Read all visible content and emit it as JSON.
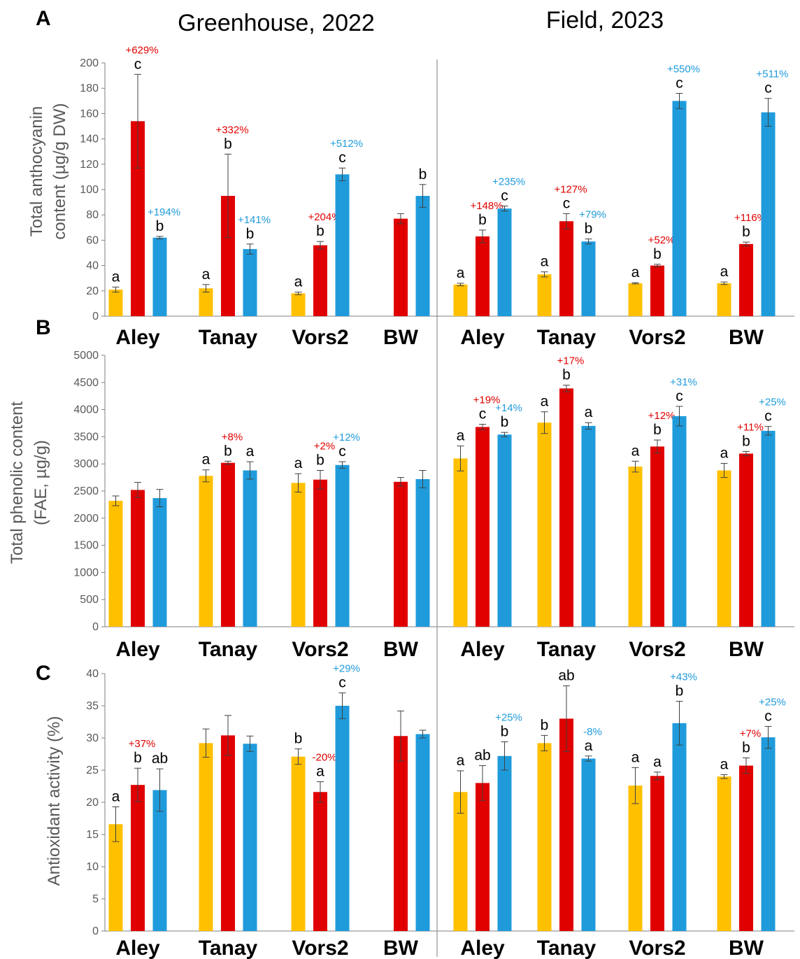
{
  "figure": {
    "column_titles": [
      "Greenhouse, 2022",
      "Field, 2023"
    ],
    "colors": {
      "yellow": "#FFC000",
      "red": "#E00000",
      "blue": "#1F9BDB",
      "axis": "#7f7f7f",
      "pct_red": "#E00000",
      "pct_blue": "#1F9BDB"
    }
  },
  "chart_data": [
    {
      "panel": "A",
      "type": "bar",
      "ylabel": [
        "Total anthocyanin",
        "content (µg/g DW)"
      ],
      "ylim": [
        0,
        200
      ],
      "yticks": [
        0,
        20,
        40,
        60,
        80,
        100,
        120,
        140,
        160,
        180,
        200
      ],
      "categories": [
        "Aley",
        "Tanay",
        "Vors2",
        "BW",
        "Aley",
        "Tanay",
        "Vors2",
        "BW"
      ],
      "groups": [
        [
          {
            "c": "yellow",
            "v": 21,
            "e": 2,
            "l": "a"
          },
          {
            "c": "red",
            "v": 154,
            "e": 37,
            "l": "c",
            "p": "+629%"
          },
          {
            "c": "blue",
            "v": 62,
            "e": 1,
            "l": "b",
            "p": "+194%"
          }
        ],
        [
          {
            "c": "yellow",
            "v": 22,
            "e": 3,
            "l": "a"
          },
          {
            "c": "red",
            "v": 95,
            "e": 33,
            "l": "b",
            "p": "+332%"
          },
          {
            "c": "blue",
            "v": 53,
            "e": 4,
            "l": "b",
            "p": "+141%"
          }
        ],
        [
          {
            "c": "yellow",
            "v": 18,
            "e": 1,
            "l": "a"
          },
          {
            "c": "red",
            "v": 56,
            "e": 3,
            "l": "b",
            "p": "+204%"
          },
          {
            "c": "blue",
            "v": 112,
            "e": 5,
            "l": "c",
            "p": "+512%"
          }
        ],
        [
          {
            "c": "red",
            "v": 77,
            "e": 4
          },
          {
            "c": "blue",
            "v": 95,
            "e": 9,
            "l": "b"
          }
        ],
        [
          {
            "c": "yellow",
            "v": 25,
            "e": 1,
            "l": "a"
          },
          {
            "c": "red",
            "v": 63,
            "e": 5,
            "l": "b",
            "p": "+148%"
          },
          {
            "c": "blue",
            "v": 85,
            "e": 2,
            "l": "c",
            "p": "+235%"
          }
        ],
        [
          {
            "c": "yellow",
            "v": 33,
            "e": 2,
            "l": "a"
          },
          {
            "c": "red",
            "v": 75,
            "e": 6,
            "l": "c",
            "p": "+127%"
          },
          {
            "c": "blue",
            "v": 59,
            "e": 2,
            "l": "b",
            "p": "+79%"
          }
        ],
        [
          {
            "c": "yellow",
            "v": 26,
            "e": 0.5,
            "l": "a"
          },
          {
            "c": "red",
            "v": 40,
            "e": 1,
            "l": "b",
            "p": "+52%"
          },
          {
            "c": "blue",
            "v": 170,
            "e": 6,
            "l": "c",
            "p": "+550%"
          }
        ],
        [
          {
            "c": "yellow",
            "v": 26,
            "e": 1,
            "l": "a"
          },
          {
            "c": "red",
            "v": 57,
            "e": 1.5,
            "l": "b",
            "p": "+116%"
          },
          {
            "c": "blue",
            "v": 161,
            "e": 11,
            "l": "c",
            "p": "+511%"
          }
        ]
      ]
    },
    {
      "panel": "B",
      "type": "bar",
      "ylabel": [
        "Total phenolic content",
        "(FAE, µg/g)"
      ],
      "ylim": [
        0,
        5000
      ],
      "yticks": [
        0,
        500,
        1000,
        1500,
        2000,
        2500,
        3000,
        3500,
        4000,
        4500,
        5000
      ],
      "categories": [
        "Aley",
        "Tanay",
        "Vors2",
        "BW",
        "Aley",
        "Tanay",
        "Vors2",
        "BW"
      ],
      "groups": [
        [
          {
            "c": "yellow",
            "v": 2320,
            "e": 90
          },
          {
            "c": "red",
            "v": 2520,
            "e": 140
          },
          {
            "c": "blue",
            "v": 2370,
            "e": 160
          }
        ],
        [
          {
            "c": "yellow",
            "v": 2780,
            "e": 110,
            "l": "a"
          },
          {
            "c": "red",
            "v": 3020,
            "e": 30,
            "l": "b",
            "p": "+8%"
          },
          {
            "c": "blue",
            "v": 2880,
            "e": 160,
            "l": "a"
          }
        ],
        [
          {
            "c": "yellow",
            "v": 2650,
            "e": 170,
            "l": "a"
          },
          {
            "c": "red",
            "v": 2710,
            "e": 170,
            "l": "b",
            "p": "+2%"
          },
          {
            "c": "blue",
            "v": 2980,
            "e": 60,
            "l": "c",
            "p": "+12%"
          }
        ],
        [
          {
            "c": "red",
            "v": 2670,
            "e": 80
          },
          {
            "c": "blue",
            "v": 2720,
            "e": 160
          }
        ],
        [
          {
            "c": "yellow",
            "v": 3100,
            "e": 230,
            "l": "a"
          },
          {
            "c": "red",
            "v": 3680,
            "e": 50,
            "l": "c",
            "p": "+19%"
          },
          {
            "c": "blue",
            "v": 3540,
            "e": 40,
            "l": "b",
            "p": "+14%"
          }
        ],
        [
          {
            "c": "yellow",
            "v": 3760,
            "e": 200,
            "l": "a"
          },
          {
            "c": "red",
            "v": 4390,
            "e": 60,
            "l": "b",
            "p": "+17%"
          },
          {
            "c": "blue",
            "v": 3700,
            "e": 60,
            "l": "a"
          }
        ],
        [
          {
            "c": "yellow",
            "v": 2950,
            "e": 100,
            "l": "a"
          },
          {
            "c": "red",
            "v": 3320,
            "e": 120,
            "l": "b",
            "p": "+12%"
          },
          {
            "c": "blue",
            "v": 3880,
            "e": 180,
            "l": "c",
            "p": "+31%"
          }
        ],
        [
          {
            "c": "yellow",
            "v": 2880,
            "e": 130,
            "l": "a"
          },
          {
            "c": "red",
            "v": 3190,
            "e": 40,
            "l": "b",
            "p": "+11%"
          },
          {
            "c": "blue",
            "v": 3610,
            "e": 80,
            "l": "c",
            "p": "+25%"
          }
        ]
      ]
    },
    {
      "panel": "C",
      "type": "bar",
      "ylabel": [
        "Antioxidant activity (%)"
      ],
      "ylim": [
        0,
        40
      ],
      "yticks": [
        0,
        5,
        10,
        15,
        20,
        25,
        30,
        35,
        40
      ],
      "categories": [
        "Aley",
        "Tanay",
        "Vors2",
        "BW",
        "Aley",
        "Tanay",
        "Vors2",
        "BW"
      ],
      "groups": [
        [
          {
            "c": "yellow",
            "v": 16.6,
            "e": 2.7,
            "l": "a"
          },
          {
            "c": "red",
            "v": 22.7,
            "e": 2.6,
            "l": "b",
            "p": "+37%"
          },
          {
            "c": "blue",
            "v": 21.9,
            "e": 3.3,
            "l": "ab"
          }
        ],
        [
          {
            "c": "yellow",
            "v": 29.2,
            "e": 2.2
          },
          {
            "c": "red",
            "v": 30.4,
            "e": 3.1
          },
          {
            "c": "blue",
            "v": 29.1,
            "e": 1.2
          }
        ],
        [
          {
            "c": "yellow",
            "v": 27.1,
            "e": 1.2,
            "l": "b"
          },
          {
            "c": "red",
            "v": 21.6,
            "e": 1.6,
            "l": "a",
            "p": "-20%"
          },
          {
            "c": "blue",
            "v": 35.0,
            "e": 2.0,
            "l": "c",
            "p": "+29%"
          }
        ],
        [
          {
            "c": "red",
            "v": 30.3,
            "e": 3.9
          },
          {
            "c": "blue",
            "v": 30.6,
            "e": 0.6
          }
        ],
        [
          {
            "c": "yellow",
            "v": 21.6,
            "e": 3.3,
            "l": "a"
          },
          {
            "c": "red",
            "v": 23.0,
            "e": 2.7,
            "l": "ab"
          },
          {
            "c": "blue",
            "v": 27.2,
            "e": 2.2,
            "l": "b",
            "p": "+25%"
          }
        ],
        [
          {
            "c": "yellow",
            "v": 29.2,
            "e": 1.2,
            "l": "b"
          },
          {
            "c": "red",
            "v": 33.0,
            "e": 5.1,
            "l": "ab"
          },
          {
            "c": "blue",
            "v": 26.8,
            "e": 0.4,
            "l": "a",
            "p": "-8%"
          }
        ],
        [
          {
            "c": "yellow",
            "v": 22.6,
            "e": 2.8,
            "l": "a"
          },
          {
            "c": "red",
            "v": 24.1,
            "e": 0.6,
            "l": "a"
          },
          {
            "c": "blue",
            "v": 32.3,
            "e": 3.4,
            "l": "b",
            "p": "+43%"
          }
        ],
        [
          {
            "c": "yellow",
            "v": 24.0,
            "e": 0.3,
            "l": "a"
          },
          {
            "c": "red",
            "v": 25.7,
            "e": 1.2,
            "l": "b",
            "p": "+7%"
          },
          {
            "c": "blue",
            "v": 30.1,
            "e": 1.7,
            "l": "c",
            "p": "+25%"
          }
        ]
      ]
    }
  ]
}
